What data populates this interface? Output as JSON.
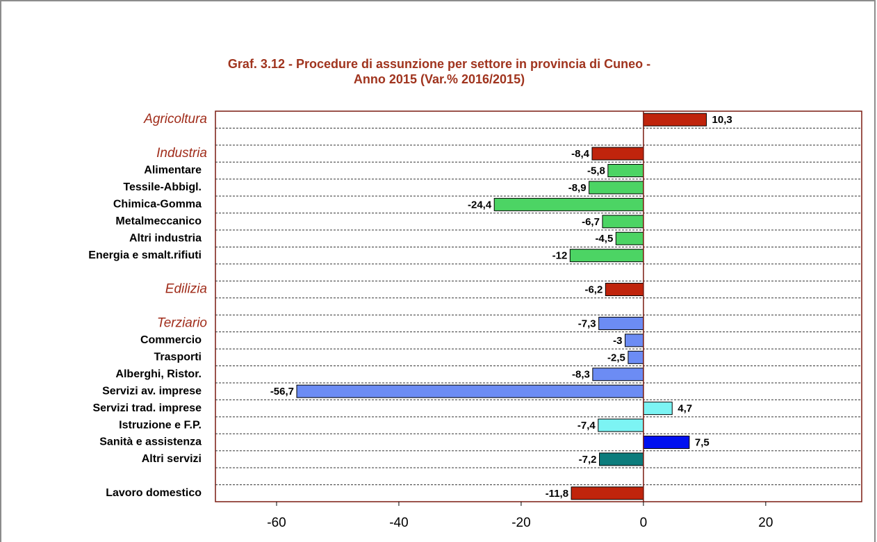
{
  "chart_data": {
    "type": "barh",
    "title": [
      "Graf. 3.12 - Procedure di assunzione per settore in provincia di Cuneo -",
      "Anno 2015 (Var.% 2016/2015)"
    ],
    "categories": [
      "Agricoltura",
      null,
      "Industria",
      "Alimentare",
      "Tessile-Abbigl.",
      "Chimica-Gomma",
      "Metalmeccanico",
      "Altri industria",
      "Energia e smalt.rifiuti",
      null,
      "Edilizia",
      null,
      "Terziario",
      "Commercio",
      "Trasporti",
      "Alberghi, Ristor.",
      "Servizi av. imprese",
      "Servizi trad. imprese",
      "Istruzione e F.P.",
      "Sanità e assistenza",
      "Altri servizi",
      null,
      "Lavoro domestico"
    ],
    "values": [
      10.3,
      null,
      -8.4,
      -5.8,
      -8.9,
      -24.4,
      -6.7,
      -4.5,
      -12,
      null,
      -6.2,
      null,
      -7.3,
      -3,
      -2.5,
      -8.3,
      -56.7,
      4.7,
      -7.4,
      7.5,
      -7.2,
      null,
      -11.8
    ],
    "value_labels": [
      "10,3",
      null,
      "-8,4",
      "-5,8",
      "-8,9",
      "-24,4",
      "-6,7",
      "-4,5",
      "-12",
      null,
      "-6,2",
      null,
      "-7,3",
      "-3",
      "-2,5",
      "-8,3",
      "-56,7",
      "4,7",
      "-7,4",
      "7,5",
      "-7,2",
      null,
      "-11,8"
    ],
    "colors": [
      "#c0240c",
      null,
      "#c0240c",
      "#4cd464",
      "#4cd464",
      "#4cd464",
      "#4cd464",
      "#4cd464",
      "#4cd464",
      null,
      "#c0240c",
      null,
      "#6c8cf4",
      "#6c8cf4",
      "#6c8cf4",
      "#6c8cf4",
      "#6c8cf4",
      "#7cf4f4",
      "#7cf4f4",
      "#0010f0",
      "#0c7c7c",
      null,
      "#c0240c"
    ],
    "xlim": [
      -70,
      35.7
    ],
    "xticks": [
      -60,
      -40,
      -20,
      0,
      20
    ],
    "grid": true
  }
}
